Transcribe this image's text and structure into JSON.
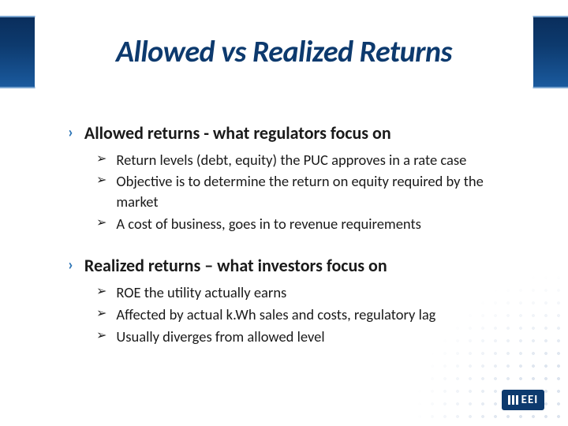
{
  "colors": {
    "header_gradient_top": "#0a2e5c",
    "header_gradient_bottom": "#1a5a9e",
    "header_border": "#7aa5d0",
    "title_color": "#0d3a6e",
    "section_bullet_color": "#2e75b6",
    "text_color": "#1a1a1a",
    "logo_bg": "#0d3a6e",
    "dot_color": "rgba(120,150,190,0.25)"
  },
  "typography": {
    "title_fontsize": 38,
    "title_weight": "700",
    "title_style": "italic",
    "section_fontsize": 22,
    "section_weight": "700",
    "item_fontsize": 18.5
  },
  "title": "Allowed vs Realized Returns",
  "bullets": {
    "section_glyph": "›",
    "item_glyph": "➢"
  },
  "sections": [
    {
      "heading": "Allowed returns - what regulators focus on",
      "items": [
        "Return levels (debt, equity) the PUC approves in a rate case",
        "Objective is to determine the return on equity required by the market",
        "A cost of business, goes in to revenue requirements"
      ]
    },
    {
      "heading": "Realized returns – what investors focus on",
      "items": [
        "ROE the utility actually earns",
        "Affected by  actual k.Wh sales and costs, regulatory lag",
        "Usually diverges from allowed level"
      ]
    }
  ],
  "logo_text": "EEI"
}
